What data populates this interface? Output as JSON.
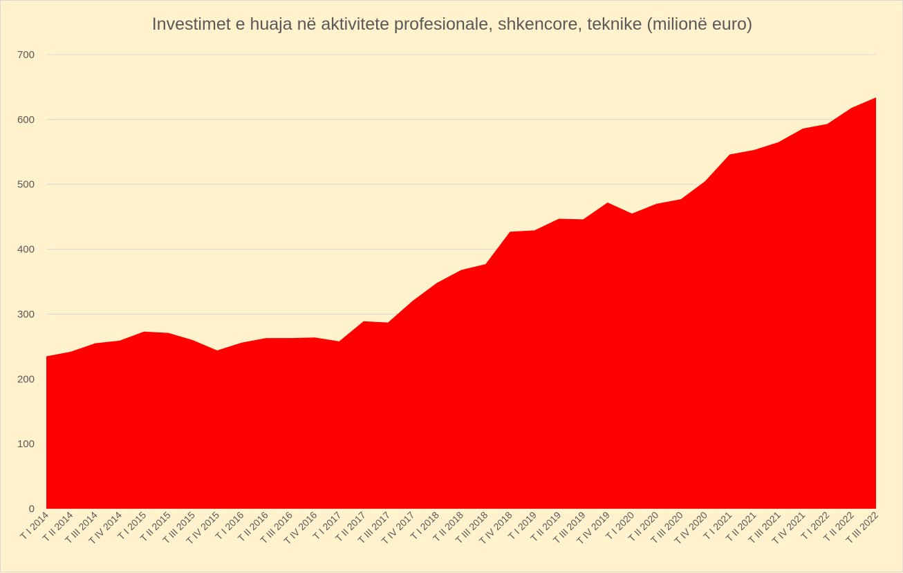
{
  "chart_data": {
    "type": "area",
    "title": "Investimet e huaja në aktivitete profesionale, shkencore, teknike (milionë euro)",
    "xlabel": "",
    "ylabel": "",
    "ylim": [
      0,
      700
    ],
    "yticks": [
      "0",
      "100",
      "200",
      "300",
      "400",
      "500",
      "600",
      "700"
    ],
    "grid": true,
    "legend": "none",
    "color": "#ff0000",
    "categories": [
      "T I 2014",
      "T II 2014",
      "T III 2014",
      "T IV 2014",
      "T I 2015",
      "T II 2015",
      "T III 2015",
      "T IV 2015",
      "T I 2016",
      "T II 2016",
      "T III 2016",
      "T IV 2016",
      "T I 2017",
      "T II 2017",
      "T III 2017",
      "T IV 2017",
      "T I 2018",
      "T II 2018",
      "T III 2018",
      "T IV 2018",
      "T I 2019",
      "T II 2019",
      "T III 2019",
      "T IV 2019",
      "T I 2020",
      "T II 2020",
      "T III 2020",
      "T IV 2020",
      "T I 2021",
      "T II 2021",
      "T III 2021",
      "T IV 2021",
      "T I 2022",
      "T II 2022",
      "T III 2022"
    ],
    "values": [
      235,
      242,
      255,
      259,
      273,
      271,
      260,
      244,
      256,
      263,
      263,
      264,
      258,
      289,
      287,
      320,
      348,
      368,
      377,
      427,
      429,
      447,
      446,
      472,
      455,
      470,
      477,
      505,
      546,
      553,
      565,
      586,
      593,
      618,
      634
    ]
  }
}
